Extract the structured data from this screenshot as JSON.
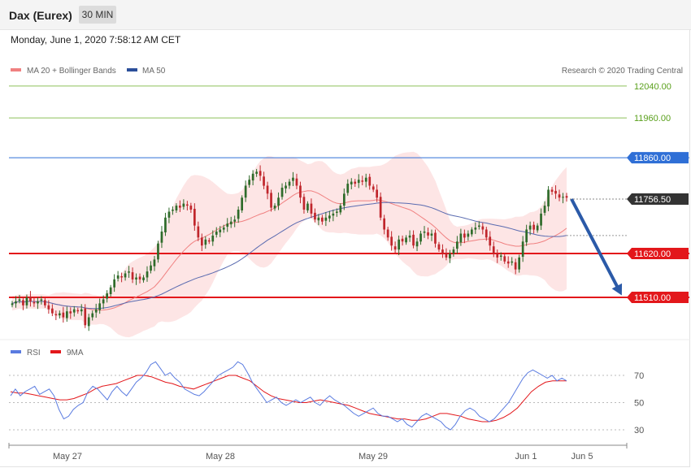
{
  "header": {
    "title": "Dax (Eurex)",
    "timeframe": "30 MIN",
    "datetime": "Monday, June 1, 2020 7:58:12 AM CET"
  },
  "legend": {
    "ma20_bb": "MA 20 + Bollinger Bands",
    "ma50": "MA 50",
    "credit": "Research © 2020 Trading Central",
    "rsi": "RSI",
    "rsi_ma": "9MA"
  },
  "colors": {
    "bull": "#2e6b2a",
    "bear": "#c0262c",
    "bollinger_fill": "#fde0e0",
    "ma20": "#f08080",
    "ma50": "#5a6bb0",
    "support": "#e3171b",
    "resistance": "#2f6fd6",
    "target": "#8ec15a",
    "current": "#333333",
    "arrow": "#2b5aa8",
    "rsi": "#5a7be0",
    "rsi_ma": "#e3171b"
  },
  "chart_data": [
    {
      "type": "candlestick",
      "title": "Dax (Eurex)",
      "timeframe": "30 MIN",
      "y_axis": {
        "labels": [
          "12040.00",
          "11960.00",
          "11860.00",
          "11756.50",
          "11620.00",
          "11510.00"
        ],
        "range": [
          11410,
          12060
        ]
      },
      "x_axis": {
        "labels": [
          "May 27",
          "May 28",
          "May 29",
          "Jun 1",
          "Jun 5"
        ]
      },
      "levels": [
        {
          "name": "resistance-2",
          "value": 12040.0,
          "label": "12040.00",
          "kind": "target"
        },
        {
          "name": "resistance-1",
          "value": 11960.0,
          "label": "11960.00",
          "kind": "target"
        },
        {
          "name": "pivot",
          "value": 11860.0,
          "label": "11860.00",
          "kind": "resistance"
        },
        {
          "name": "last-price",
          "value": 11756.5,
          "label": "11756.50",
          "kind": "current"
        },
        {
          "name": "support-1",
          "value": 11620.0,
          "label": "11620.00",
          "kind": "support"
        },
        {
          "name": "support-2",
          "value": 11510.0,
          "label": "11510.00",
          "kind": "support"
        }
      ],
      "forecast_arrow": {
        "from": 11756.5,
        "to": 11510.0
      },
      "closes": [
        11495,
        11500,
        11505,
        11490,
        11510,
        11500,
        11495,
        11500,
        11505,
        11490,
        11480,
        11470,
        11465,
        11470,
        11460,
        11475,
        11470,
        11480,
        11475,
        11480,
        11440,
        11460,
        11470,
        11480,
        11495,
        11505,
        11520,
        11535,
        11555,
        11565,
        11560,
        11570,
        11575,
        11555,
        11560,
        11555,
        11560,
        11575,
        11590,
        11605,
        11645,
        11675,
        11710,
        11725,
        11730,
        11740,
        11735,
        11745,
        11740,
        11730,
        11690,
        11660,
        11640,
        11655,
        11650,
        11665,
        11675,
        11680,
        11685,
        11695,
        11700,
        11705,
        11730,
        11760,
        11790,
        11805,
        11820,
        11825,
        11815,
        11790,
        11770,
        11735,
        11740,
        11760,
        11785,
        11790,
        11800,
        11810,
        11790,
        11760,
        11730,
        11745,
        11720,
        11705,
        11710,
        11700,
        11710,
        11715,
        11720,
        11725,
        11740,
        11770,
        11795,
        11800,
        11795,
        11805,
        11800,
        11810,
        11790,
        11780,
        11760,
        11710,
        11680,
        11660,
        11640,
        11630,
        11655,
        11650,
        11660,
        11665,
        11640,
        11650,
        11670,
        11675,
        11665,
        11670,
        11645,
        11630,
        11620,
        11610,
        11620,
        11630,
        11650,
        11670,
        11660,
        11670,
        11680,
        11685,
        11690,
        11680,
        11660,
        11640,
        11620,
        11610,
        11615,
        11600,
        11595,
        11600,
        11580,
        11610,
        11650,
        11680,
        11690,
        11680,
        11690,
        11720,
        11740,
        11780,
        11775,
        11770,
        11760,
        11762,
        11760
      ]
    },
    {
      "type": "line",
      "title": "RSI",
      "series": [
        {
          "name": "RSI",
          "values": [
            55,
            60,
            55,
            58,
            60,
            62,
            56,
            58,
            60,
            55,
            45,
            38,
            40,
            45,
            48,
            50,
            58,
            62,
            60,
            56,
            52,
            58,
            62,
            58,
            55,
            60,
            65,
            68,
            72,
            78,
            80,
            75,
            70,
            72,
            68,
            65,
            60,
            58,
            56,
            55,
            58,
            62,
            66,
            70,
            72,
            74,
            76,
            80,
            78,
            72,
            65,
            60,
            55,
            50,
            52,
            54,
            50,
            48,
            50,
            52,
            50,
            52,
            54,
            50,
            48,
            52,
            55,
            52,
            50,
            48,
            45,
            42,
            40,
            42,
            44,
            46,
            42,
            40,
            40,
            38,
            36,
            38,
            34,
            32,
            36,
            40,
            42,
            40,
            38,
            36,
            32,
            30,
            34,
            40,
            44,
            46,
            44,
            40,
            38,
            36,
            38,
            42,
            46,
            50,
            56,
            62,
            68,
            72,
            74,
            72,
            70,
            68,
            70,
            66,
            68,
            66
          ]
        },
        {
          "name": "9MA",
          "values": [
            58,
            57,
            57,
            56,
            55,
            54,
            53,
            52,
            52,
            53,
            55,
            57,
            60,
            62,
            63,
            64,
            66,
            68,
            70,
            70,
            69,
            67,
            65,
            64,
            62,
            61,
            60,
            62,
            64,
            66,
            68,
            70,
            70,
            68,
            66,
            62,
            58,
            55,
            53,
            52,
            51,
            50,
            50,
            51,
            52,
            51,
            50,
            49,
            48,
            46,
            44,
            42,
            41,
            40,
            39,
            38,
            38,
            37,
            37,
            38,
            40,
            42,
            42,
            41,
            40,
            38,
            37,
            36,
            36,
            37,
            39,
            42,
            46,
            52,
            58,
            62,
            65,
            66,
            66,
            66
          ]
        }
      ],
      "y_axis": {
        "labels": [
          "70",
          "50",
          "30"
        ],
        "range": [
          18,
          82
        ]
      }
    }
  ]
}
